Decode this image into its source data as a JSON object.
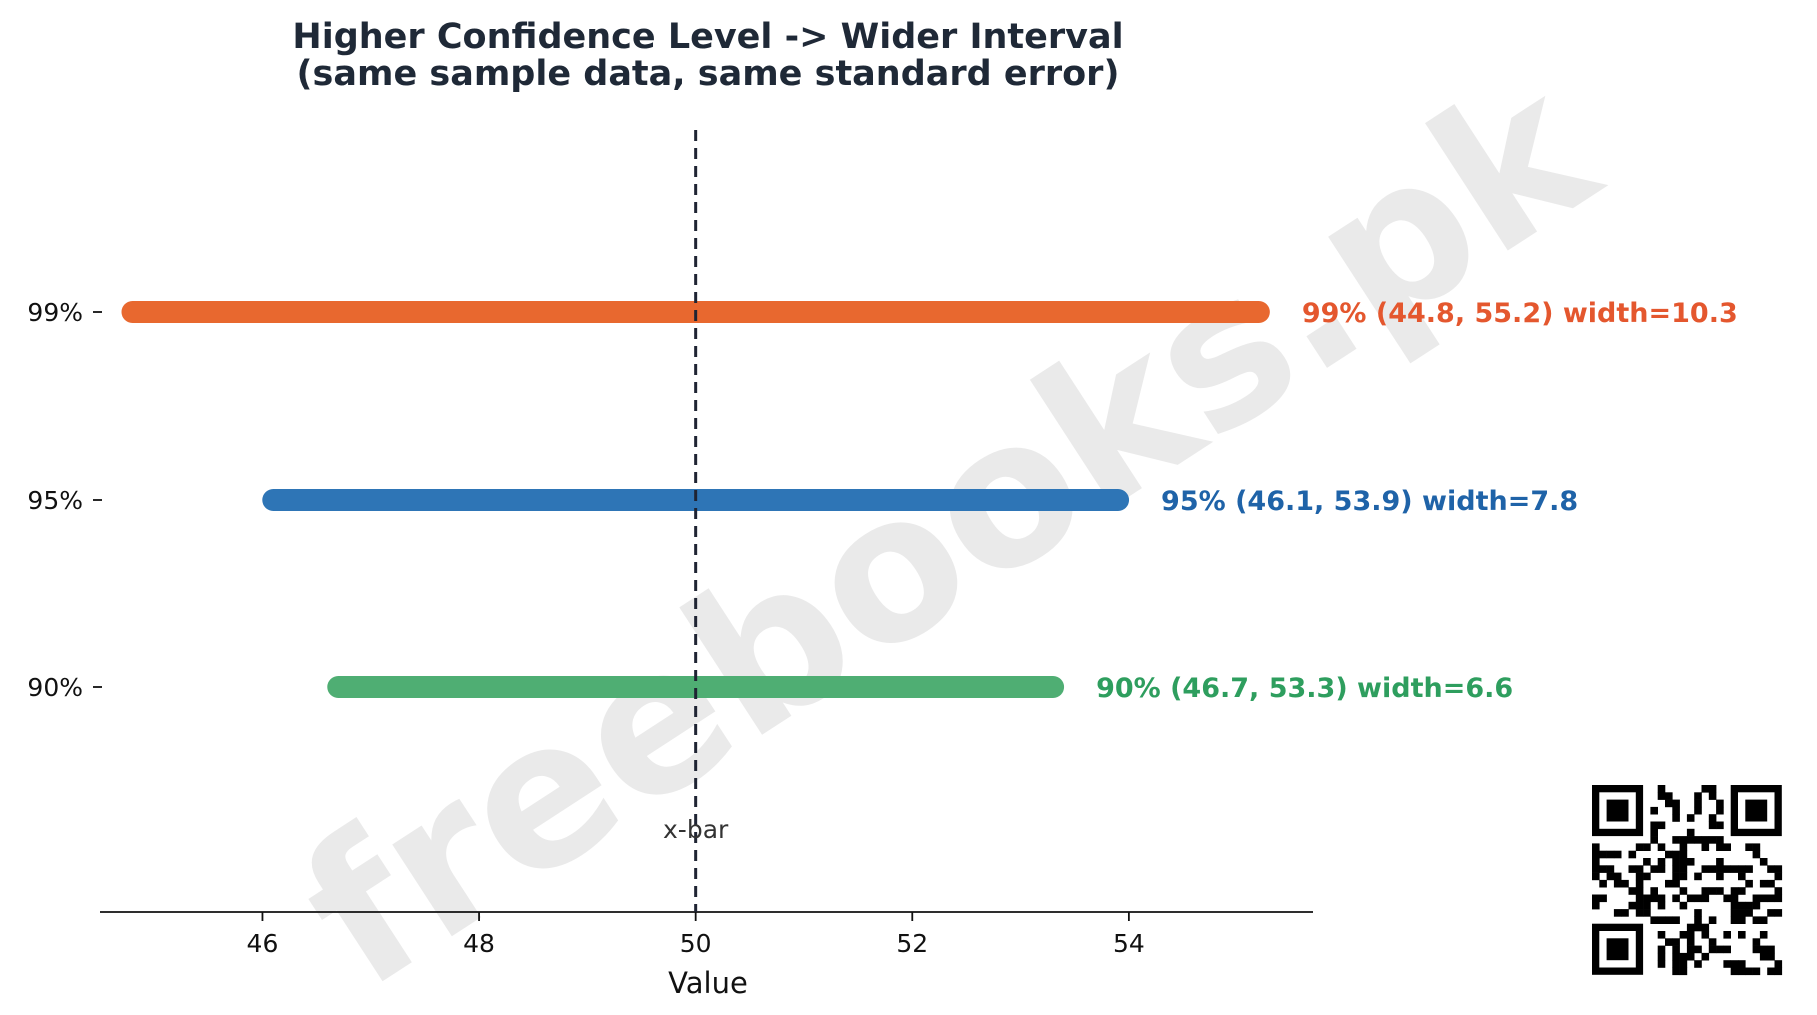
{
  "chart_data": {
    "type": "interval",
    "title": "Higher Confidence Level -> Wider Interval",
    "subtitle": "(same sample data, same standard error)",
    "xlabel": "Value",
    "ylabel": "",
    "xlim": [
      44.5,
      55.7
    ],
    "xticks": [
      46,
      48,
      50,
      52,
      54
    ],
    "grid": false,
    "categories": [
      "99%",
      "95%",
      "90%"
    ],
    "series": [
      {
        "level": "99%",
        "lower": 44.8,
        "upper": 55.2,
        "color": "#e8682f",
        "label": "99%  (44.8, 55.2)  width=10.3",
        "label_color": "#e4572e"
      },
      {
        "level": "95%",
        "lower": 46.1,
        "upper": 53.9,
        "color": "#2e75b6",
        "label": "95%  (46.1, 53.9)  width=7.8",
        "label_color": "#1f63a8"
      },
      {
        "level": "90%",
        "lower": 46.7,
        "upper": 53.3,
        "color": "#4fae73",
        "label": "90%  (46.7, 53.3)  width=6.6",
        "label_color": "#2e9e5e"
      }
    ],
    "reference_line": {
      "x": 50,
      "label": "x-bar",
      "style": "dashed",
      "color": "#1f2433"
    }
  },
  "watermark": "freebooks.pk",
  "qr_icon": "qr-code-icon"
}
